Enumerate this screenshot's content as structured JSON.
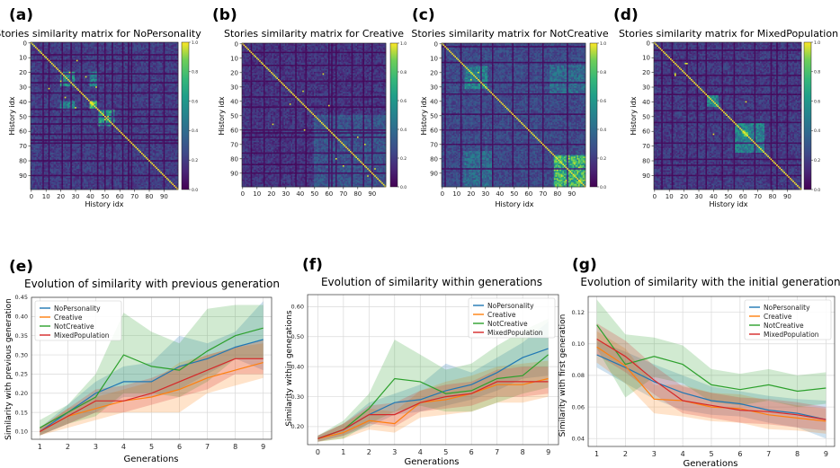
{
  "colors": {
    "NoPersonality": "#1f77b4",
    "Creative": "#ff7f0e",
    "NotCreative": "#2ca02c",
    "MixedPopulation": "#d62728",
    "grid": "#d9d9d9"
  },
  "panel_labels": [
    "(a)",
    "(b)",
    "(c)",
    "(d)",
    "(e)",
    "(f)",
    "(g)"
  ],
  "chart_data": [
    {
      "type": "heatmap",
      "panel": "(a)",
      "title": "Stories similarity matrix for NoPersonality",
      "xlabel": "History idx",
      "ylabel": "History idx",
      "xticks": [
        "0",
        "10",
        "20",
        "30",
        "40",
        "50",
        "60",
        "70",
        "80",
        "90"
      ],
      "yticks": [
        "0",
        "10",
        "20",
        "30",
        "40",
        "50",
        "60",
        "70",
        "80",
        "90"
      ],
      "size": 100,
      "colorbar_ticks": [
        "0.0",
        "0.2",
        "0.4",
        "0.6",
        "0.8",
        "1.0"
      ],
      "colorbar_range": [
        0,
        1
      ],
      "base": 0.18,
      "dark_lines": [
        8,
        12,
        21,
        27,
        34,
        45,
        50,
        55,
        62,
        66,
        68,
        80,
        90
      ],
      "hot_blocks": [
        {
          "i0": 20,
          "i1": 30,
          "j0": 20,
          "j1": 30,
          "v": 0.55
        },
        {
          "i0": 40,
          "i1": 46,
          "j0": 40,
          "j1": 46,
          "v": 0.8
        },
        {
          "i0": 45,
          "i1": 57,
          "j0": 45,
          "j1": 57,
          "v": 0.6
        },
        {
          "i0": 40,
          "i1": 46,
          "j0": 20,
          "j1": 30,
          "v": 0.5
        },
        {
          "i0": 20,
          "i1": 30,
          "j0": 40,
          "j1": 46,
          "v": 0.5
        }
      ],
      "bright_points": [
        [
          31,
          12
        ],
        [
          50,
          52
        ],
        [
          37,
          23
        ],
        [
          20,
          26
        ],
        [
          44,
          30
        ]
      ]
    },
    {
      "type": "heatmap",
      "panel": "(b)",
      "title": "Stories similarity matrix for Creative",
      "xlabel": "",
      "ylabel": "History idx",
      "xticks": [
        "0",
        "10",
        "20",
        "30",
        "40",
        "50",
        "60",
        "70",
        "80",
        "90"
      ],
      "yticks": [
        "0",
        "10",
        "20",
        "30",
        "40",
        "50",
        "60",
        "70",
        "80",
        "90"
      ],
      "size": 100,
      "colorbar_ticks": [
        "0.0",
        "0.2",
        "0.4",
        "0.6",
        "0.8",
        "1.0"
      ],
      "colorbar_range": [
        0,
        1
      ],
      "base": 0.15,
      "dark_lines": [
        6,
        15,
        26,
        37,
        44,
        60,
        62,
        65,
        76,
        84,
        90
      ],
      "hot_blocks": [
        {
          "i0": 50,
          "i1": 100,
          "j0": 50,
          "j1": 100,
          "v": 0.3
        }
      ],
      "bright_points": [
        [
          56,
          21
        ],
        [
          65,
          80
        ],
        [
          42,
          33
        ],
        [
          70,
          85
        ],
        [
          87,
          92
        ],
        [
          60,
          43
        ]
      ]
    },
    {
      "type": "heatmap",
      "panel": "(c)",
      "title": "Stories similarity matrix for NotCreative",
      "xlabel": "History idx",
      "ylabel": "History idx",
      "xticks": [
        "0",
        "10",
        "20",
        "30",
        "40",
        "50",
        "60",
        "70",
        "80",
        "90"
      ],
      "yticks": [
        "0",
        "10",
        "20",
        "30",
        "40",
        "50",
        "60",
        "70",
        "80",
        "90"
      ],
      "size": 100,
      "colorbar_ticks": [
        "0.0",
        "0.2",
        "0.4",
        "0.6",
        "0.8",
        "1.0"
      ],
      "colorbar_range": [
        0,
        1
      ],
      "base": 0.22,
      "dark_lines": [
        2,
        13,
        27,
        35,
        49,
        60,
        70,
        87
      ],
      "hot_blocks": [
        {
          "i0": 16,
          "i1": 32,
          "j0": 16,
          "j1": 32,
          "v": 0.5
        },
        {
          "i0": 78,
          "i1": 100,
          "j0": 78,
          "j1": 100,
          "v": 0.75
        },
        {
          "i0": 75,
          "i1": 100,
          "j0": 15,
          "j1": 35,
          "v": 0.4
        },
        {
          "i0": 15,
          "i1": 35,
          "j0": 75,
          "j1": 100,
          "v": 0.4
        }
      ],
      "bright_points": [
        [
          20,
          25
        ],
        [
          83,
          92
        ],
        [
          95,
          86
        ],
        [
          88,
          80
        ]
      ]
    },
    {
      "type": "heatmap",
      "panel": "(d)",
      "title": "Stories similarity matrix for MixedPopulation",
      "xlabel": "History idx",
      "ylabel": "History idx",
      "xticks": [
        "0",
        "10",
        "20",
        "30",
        "40",
        "50",
        "60",
        "70",
        "80",
        "90"
      ],
      "yticks": [
        "0",
        "10",
        "20",
        "30",
        "40",
        "50",
        "60",
        "70",
        "80",
        "90"
      ],
      "size": 100,
      "colorbar_ticks": [
        "0.0",
        "0.2",
        "0.4",
        "0.6",
        "0.8",
        "1.0"
      ],
      "colorbar_range": [
        0,
        1
      ],
      "base": 0.17,
      "dark_lines": [
        5,
        12,
        22,
        29,
        35,
        46,
        54,
        68,
        79,
        83,
        90
      ],
      "hot_blocks": [
        {
          "i0": 36,
          "i1": 44,
          "j0": 36,
          "j1": 44,
          "v": 0.55
        },
        {
          "i0": 55,
          "i1": 75,
          "j0": 55,
          "j1": 75,
          "v": 0.5
        },
        {
          "i0": 60,
          "i1": 64,
          "j0": 60,
          "j1": 64,
          "v": 0.95
        }
      ],
      "bright_points": [
        [
          14,
          21
        ],
        [
          22,
          14
        ],
        [
          62,
          40
        ]
      ]
    },
    {
      "type": "line",
      "panel": "(e)",
      "title": "Evolution of similarity with previous generation",
      "xlabel": "Generations",
      "ylabel": "Similarity with previous generation",
      "x": [
        1,
        2,
        3,
        4,
        5,
        6,
        7,
        8,
        9
      ],
      "xlim": [
        0.7,
        9.3
      ],
      "ylim": [
        0.08,
        0.45
      ],
      "yticks": [
        0.1,
        0.15,
        0.2,
        0.25,
        0.3,
        0.35,
        0.4,
        0.45
      ],
      "legend_position": "top-left",
      "series": [
        {
          "name": "NoPersonality",
          "values": [
            0.1,
            0.15,
            0.2,
            0.23,
            0.23,
            0.27,
            0.29,
            0.32,
            0.34
          ],
          "lower": [
            0.09,
            0.12,
            0.15,
            0.19,
            0.19,
            0.21,
            0.25,
            0.29,
            0.26
          ],
          "upper": [
            0.11,
            0.17,
            0.23,
            0.27,
            0.28,
            0.35,
            0.33,
            0.36,
            0.44
          ]
        },
        {
          "name": "Creative",
          "values": [
            0.1,
            0.14,
            0.16,
            0.18,
            0.19,
            0.21,
            0.24,
            0.26,
            0.28
          ],
          "lower": [
            0.09,
            0.11,
            0.13,
            0.15,
            0.15,
            0.15,
            0.2,
            0.22,
            0.24
          ],
          "upper": [
            0.11,
            0.16,
            0.19,
            0.21,
            0.23,
            0.28,
            0.3,
            0.32,
            0.33
          ]
        },
        {
          "name": "NotCreative",
          "values": [
            0.11,
            0.15,
            0.19,
            0.3,
            0.27,
            0.26,
            0.31,
            0.35,
            0.37
          ],
          "lower": [
            0.09,
            0.12,
            0.14,
            0.2,
            0.2,
            0.19,
            0.23,
            0.29,
            0.29
          ],
          "upper": [
            0.13,
            0.17,
            0.25,
            0.41,
            0.36,
            0.33,
            0.42,
            0.43,
            0.43
          ]
        },
        {
          "name": "MixedPopulation",
          "values": [
            0.1,
            0.14,
            0.18,
            0.18,
            0.2,
            0.23,
            0.26,
            0.29,
            0.29
          ],
          "lower": [
            0.09,
            0.12,
            0.15,
            0.15,
            0.17,
            0.19,
            0.21,
            0.25,
            0.25
          ],
          "upper": [
            0.11,
            0.16,
            0.21,
            0.22,
            0.24,
            0.27,
            0.3,
            0.32,
            0.34
          ]
        }
      ]
    },
    {
      "type": "line",
      "panel": "(f)",
      "title": "Evolution of similarity within generations",
      "xlabel": "Generations",
      "ylabel": "Similarity within generations",
      "x": [
        0,
        1,
        2,
        3,
        4,
        5,
        6,
        7,
        8,
        9
      ],
      "xlim": [
        -0.4,
        9.4
      ],
      "ylim": [
        0.14,
        0.64
      ],
      "yticks": [
        0.2,
        0.3,
        0.4,
        0.5,
        0.6
      ],
      "legend_position": "top-right",
      "series": [
        {
          "name": "NoPersonality",
          "values": [
            0.16,
            0.19,
            0.24,
            0.28,
            0.29,
            0.32,
            0.34,
            0.38,
            0.43,
            0.46
          ],
          "lower": [
            0.15,
            0.17,
            0.2,
            0.24,
            0.25,
            0.27,
            0.29,
            0.32,
            0.36,
            0.37
          ],
          "upper": [
            0.17,
            0.21,
            0.28,
            0.31,
            0.34,
            0.41,
            0.38,
            0.43,
            0.48,
            0.55
          ]
        },
        {
          "name": "Creative",
          "values": [
            0.16,
            0.18,
            0.22,
            0.21,
            0.28,
            0.29,
            0.31,
            0.34,
            0.34,
            0.36
          ],
          "lower": [
            0.15,
            0.16,
            0.19,
            0.18,
            0.23,
            0.24,
            0.25,
            0.28,
            0.28,
            0.3
          ],
          "upper": [
            0.17,
            0.21,
            0.26,
            0.25,
            0.32,
            0.35,
            0.37,
            0.4,
            0.41,
            0.42
          ]
        },
        {
          "name": "NotCreative",
          "values": [
            0.16,
            0.19,
            0.26,
            0.36,
            0.35,
            0.31,
            0.32,
            0.36,
            0.37,
            0.44
          ],
          "lower": [
            0.15,
            0.16,
            0.21,
            0.25,
            0.27,
            0.25,
            0.25,
            0.28,
            0.31,
            0.33
          ],
          "upper": [
            0.17,
            0.22,
            0.31,
            0.49,
            0.44,
            0.39,
            0.41,
            0.47,
            0.52,
            0.56
          ]
        },
        {
          "name": "MixedPopulation",
          "values": [
            0.16,
            0.19,
            0.24,
            0.24,
            0.28,
            0.3,
            0.31,
            0.35,
            0.35,
            0.35
          ],
          "lower": [
            0.15,
            0.17,
            0.21,
            0.2,
            0.25,
            0.26,
            0.27,
            0.3,
            0.3,
            0.31
          ],
          "upper": [
            0.17,
            0.21,
            0.27,
            0.28,
            0.32,
            0.34,
            0.35,
            0.39,
            0.4,
            0.4
          ]
        }
      ]
    },
    {
      "type": "line",
      "panel": "(g)",
      "title": "Evolution of similarity with the initial generation",
      "xlabel": "Generations",
      "ylabel": "Similarity with first generation",
      "x": [
        1,
        2,
        3,
        4,
        5,
        6,
        7,
        8,
        9
      ],
      "xlim": [
        0.7,
        9.3
      ],
      "ylim": [
        0.035,
        0.13
      ],
      "yticks": [
        0.04,
        0.06,
        0.08,
        0.1,
        0.12
      ],
      "legend_position": "top-right",
      "series": [
        {
          "name": "NoPersonality",
          "values": [
            0.093,
            0.085,
            0.076,
            0.069,
            0.064,
            0.062,
            0.058,
            0.056,
            0.052
          ],
          "lower": [
            0.085,
            0.075,
            0.065,
            0.058,
            0.055,
            0.054,
            0.05,
            0.047,
            0.04
          ],
          "upper": [
            0.102,
            0.095,
            0.087,
            0.08,
            0.073,
            0.07,
            0.067,
            0.065,
            0.064
          ]
        },
        {
          "name": "Creative",
          "values": [
            0.098,
            0.086,
            0.065,
            0.064,
            0.06,
            0.059,
            0.055,
            0.053,
            0.051
          ],
          "lower": [
            0.088,
            0.075,
            0.056,
            0.054,
            0.051,
            0.05,
            0.046,
            0.045,
            0.043
          ],
          "upper": [
            0.108,
            0.097,
            0.074,
            0.074,
            0.069,
            0.068,
            0.064,
            0.061,
            0.059
          ]
        },
        {
          "name": "NotCreative",
          "values": [
            0.112,
            0.087,
            0.092,
            0.087,
            0.074,
            0.071,
            0.074,
            0.07,
            0.072
          ],
          "lower": [
            0.097,
            0.066,
            0.079,
            0.075,
            0.063,
            0.061,
            0.064,
            0.06,
            0.062
          ],
          "upper": [
            0.128,
            0.106,
            0.104,
            0.099,
            0.084,
            0.081,
            0.084,
            0.08,
            0.082
          ]
        },
        {
          "name": "MixedPopulation",
          "values": [
            0.103,
            0.092,
            0.077,
            0.064,
            0.061,
            0.058,
            0.057,
            0.055,
            0.052
          ],
          "lower": [
            0.093,
            0.082,
            0.068,
            0.056,
            0.053,
            0.05,
            0.049,
            0.047,
            0.045
          ],
          "upper": [
            0.113,
            0.102,
            0.086,
            0.073,
            0.069,
            0.066,
            0.065,
            0.063,
            0.06
          ]
        }
      ]
    }
  ]
}
